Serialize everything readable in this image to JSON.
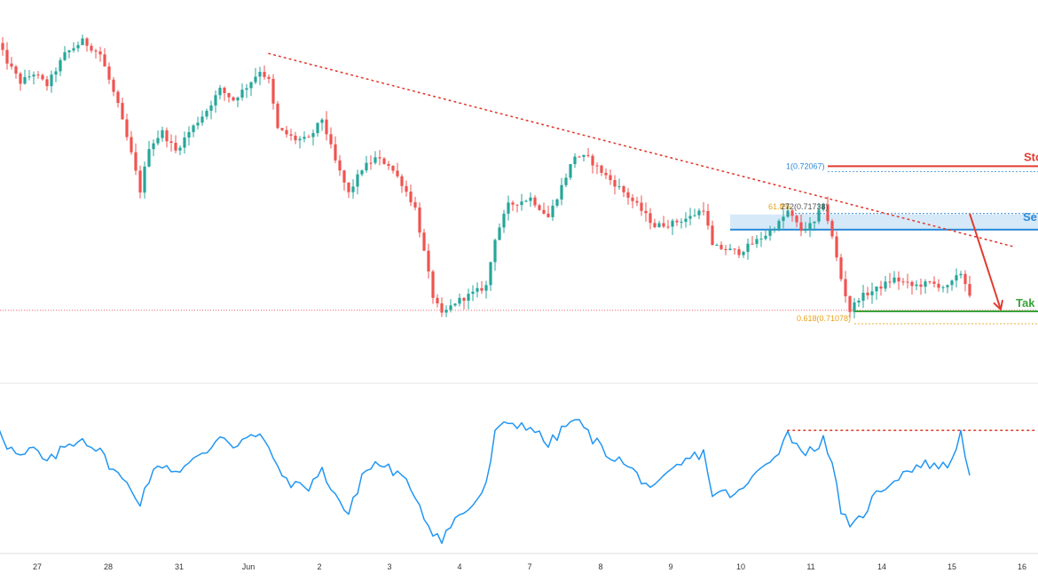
{
  "chart_data": [
    {
      "type": "candlestick",
      "panel": "price",
      "colors": {
        "up": "#26a69a",
        "down": "#ef5350",
        "wick_up": "#26a69a",
        "wick_down": "#ef5350"
      },
      "anchors": [
        [
          0,
          0.729
        ],
        [
          2,
          0.7278
        ],
        [
          5,
          0.7264
        ],
        [
          8,
          0.727
        ],
        [
          11,
          0.7262
        ],
        [
          15,
          0.7283
        ],
        [
          19,
          0.7292
        ],
        [
          23,
          0.7283
        ],
        [
          27,
          0.7248
        ],
        [
          30,
          0.7215
        ],
        [
          32,
          0.719
        ],
        [
          34,
          0.722
        ],
        [
          37,
          0.723
        ],
        [
          40,
          0.7217
        ],
        [
          43,
          0.723
        ],
        [
          47,
          0.7245
        ],
        [
          50,
          0.7259
        ],
        [
          53,
          0.7252
        ],
        [
          56,
          0.7261
        ],
        [
          59,
          0.7272
        ],
        [
          61,
          0.7265
        ],
        [
          63,
          0.7232
        ],
        [
          67,
          0.7225
        ],
        [
          70,
          0.7225
        ],
        [
          73,
          0.7239
        ],
        [
          76,
          0.721
        ],
        [
          79,
          0.7188
        ],
        [
          82,
          0.7205
        ],
        [
          85,
          0.7212
        ],
        [
          88,
          0.7208
        ],
        [
          91,
          0.7195
        ],
        [
          94,
          0.7178
        ],
        [
          96,
          0.7148
        ],
        [
          98,
          0.7118
        ],
        [
          100,
          0.7105
        ],
        [
          103,
          0.7114
        ],
        [
          107,
          0.712
        ],
        [
          110,
          0.7125
        ],
        [
          112,
          0.7158
        ],
        [
          115,
          0.718
        ],
        [
          120,
          0.7185
        ],
        [
          124,
          0.7172
        ],
        [
          128,
          0.72
        ],
        [
          130,
          0.7214
        ],
        [
          133,
          0.7212
        ],
        [
          137,
          0.72
        ],
        [
          140,
          0.7192
        ],
        [
          144,
          0.718
        ],
        [
          148,
          0.7166
        ],
        [
          152,
          0.7168
        ],
        [
          156,
          0.7172
        ],
        [
          159,
          0.7178
        ],
        [
          161,
          0.7152
        ],
        [
          164,
          0.715
        ],
        [
          167,
          0.7148
        ],
        [
          170,
          0.7154
        ],
        [
          173,
          0.716
        ],
        [
          176,
          0.7168
        ],
        [
          178,
          0.7176
        ],
        [
          181,
          0.7163
        ],
        [
          184,
          0.7168
        ],
        [
          186,
          0.7182
        ],
        [
          188,
          0.7158
        ],
        [
          190,
          0.713
        ],
        [
          192,
          0.7108
        ],
        [
          194,
          0.7117
        ],
        [
          198,
          0.7123
        ],
        [
          202,
          0.713
        ],
        [
          206,
          0.7125
        ],
        [
          210,
          0.7127
        ],
        [
          214,
          0.7124
        ],
        [
          217,
          0.7134
        ],
        [
          219,
          0.712
        ]
      ],
      "y_range": [
        0.706,
        0.732
      ],
      "x_range": [
        0,
        235
      ],
      "x_tick_labels": [
        "27",
        "28",
        "31",
        "Jun",
        "2",
        "3",
        "4",
        "7",
        "8",
        "9",
        "10",
        "11",
        "14",
        "15",
        "16"
      ],
      "trendline": {
        "style": "dotted",
        "color": "#e03c31",
        "from": [
          61,
          0.72835
        ],
        "to": [
          229,
          0.71518
        ]
      },
      "reference_line": {
        "style": "dotted",
        "color": "#ef5350",
        "price": 0.71085
      },
      "stop_loss": {
        "label": "Sto",
        "price": 0.72067,
        "color": "#e03c31"
      },
      "sell_zone": {
        "label": "Se",
        "price_top": 0.71738,
        "price_bottom": 0.71635,
        "color": "#2d8ad8",
        "fill": "#cce4f7"
      },
      "take_profit": {
        "label": "Tak",
        "price": 0.71078,
        "color": "#3aa33a"
      },
      "fib_labels": [
        {
          "text": "1(0.72067)",
          "price": 0.72067,
          "color": "#2d8ad8"
        },
        {
          "text": "61.8%",
          "price": 0.71738,
          "color": "#e8a317"
        },
        {
          "text": "272(0.71738)",
          "price": 0.71738,
          "color": "#555555"
        },
        {
          "text": "0.618(0.71078)",
          "price": 0.71078,
          "color": "#e8a317"
        }
      ],
      "arrow": {
        "color": "#e03c31",
        "from": [
          219,
          0.71745
        ],
        "to": [
          226,
          0.71078
        ]
      }
    },
    {
      "type": "line",
      "panel": "oscillator",
      "color": "#2196f3",
      "y_range": [
        5,
        95
      ],
      "anchors": [
        [
          0,
          73
        ],
        [
          2,
          62
        ],
        [
          5,
          55
        ],
        [
          8,
          60
        ],
        [
          11,
          52
        ],
        [
          15,
          61
        ],
        [
          19,
          66
        ],
        [
          23,
          58
        ],
        [
          27,
          46
        ],
        [
          30,
          38
        ],
        [
          32,
          32
        ],
        [
          34,
          44
        ],
        [
          37,
          52
        ],
        [
          40,
          48
        ],
        [
          43,
          52
        ],
        [
          47,
          58
        ],
        [
          50,
          68
        ],
        [
          53,
          62
        ],
        [
          56,
          66
        ],
        [
          59,
          66
        ],
        [
          61,
          62
        ],
        [
          63,
          48
        ],
        [
          67,
          40
        ],
        [
          70,
          40
        ],
        [
          73,
          48
        ],
        [
          76,
          36
        ],
        [
          79,
          24
        ],
        [
          82,
          46
        ],
        [
          85,
          52
        ],
        [
          88,
          50
        ],
        [
          91,
          44
        ],
        [
          94,
          36
        ],
        [
          96,
          24
        ],
        [
          98,
          16
        ],
        [
          100,
          12
        ],
        [
          103,
          22
        ],
        [
          107,
          30
        ],
        [
          110,
          40
        ],
        [
          112,
          68
        ],
        [
          115,
          74
        ],
        [
          120,
          72
        ],
        [
          124,
          62
        ],
        [
          128,
          72
        ],
        [
          130,
          76
        ],
        [
          133,
          68
        ],
        [
          137,
          58
        ],
        [
          140,
          54
        ],
        [
          144,
          46
        ],
        [
          148,
          38
        ],
        [
          152,
          48
        ],
        [
          156,
          55
        ],
        [
          159,
          58
        ],
        [
          161,
          36
        ],
        [
          164,
          36
        ],
        [
          167,
          36
        ],
        [
          170,
          44
        ],
        [
          173,
          52
        ],
        [
          176,
          60
        ],
        [
          178,
          68
        ],
        [
          181,
          60
        ],
        [
          184,
          58
        ],
        [
          186,
          68
        ],
        [
          188,
          50
        ],
        [
          190,
          28
        ],
        [
          192,
          16
        ],
        [
          194,
          22
        ],
        [
          198,
          36
        ],
        [
          202,
          44
        ],
        [
          206,
          50
        ],
        [
          210,
          52
        ],
        [
          214,
          50
        ],
        [
          217,
          68
        ],
        [
          219,
          48
        ]
      ],
      "resistance": {
        "style": "dotted",
        "color": "#e03c31",
        "value": 69.8
      }
    }
  ]
}
